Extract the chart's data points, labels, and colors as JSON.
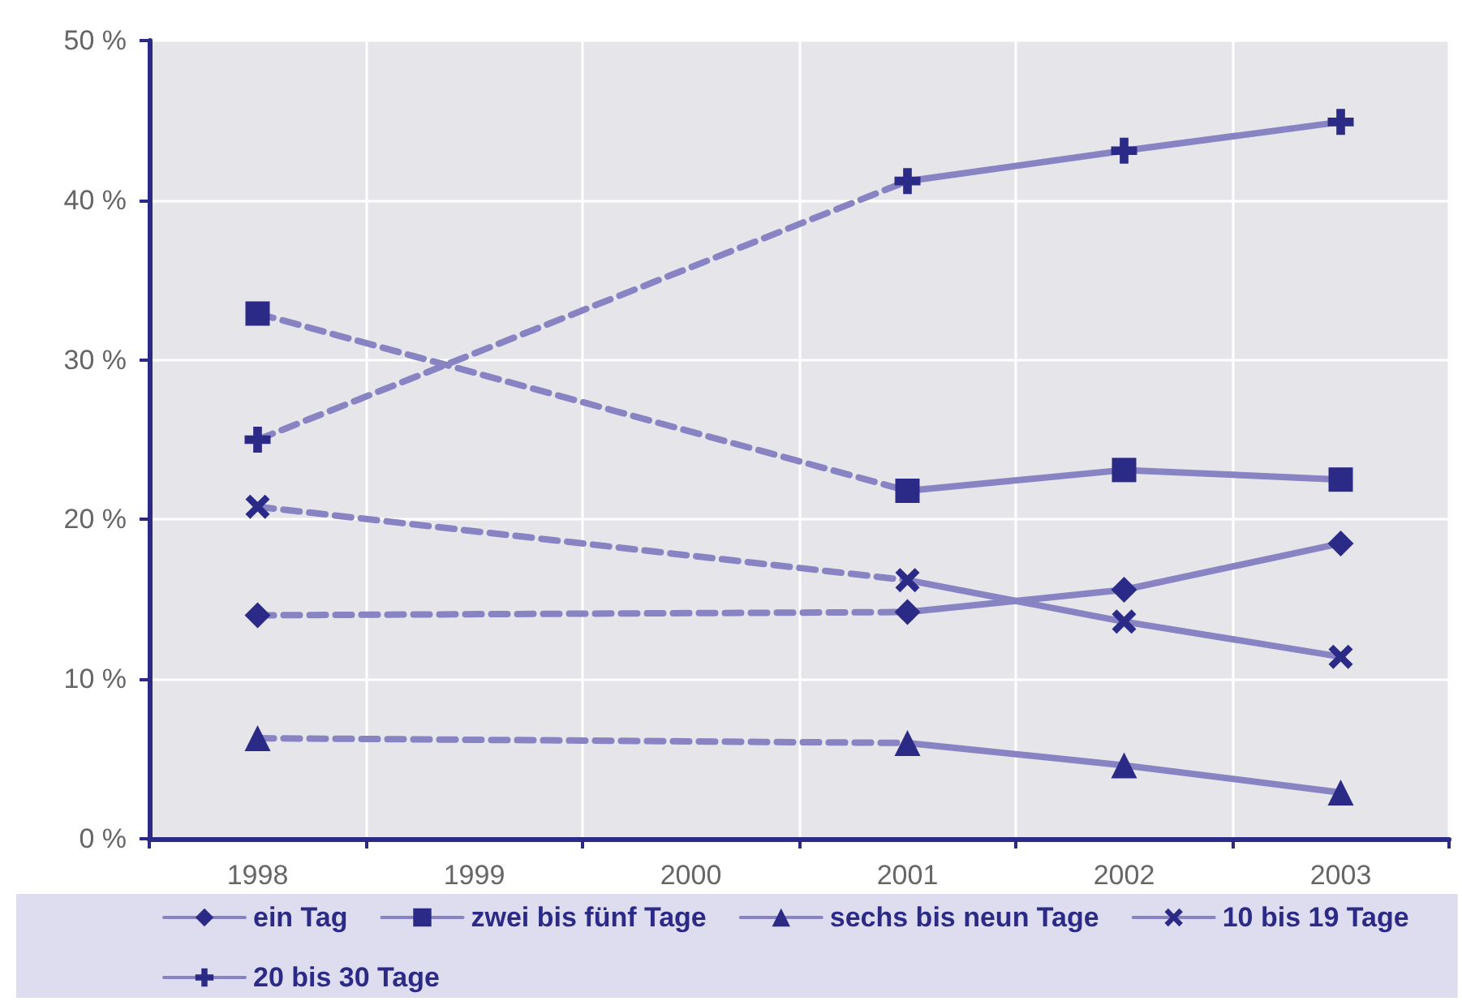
{
  "chart_data": {
    "type": "line",
    "categories": [
      "1998",
      "1999",
      "2000",
      "2001",
      "2002",
      "2003"
    ],
    "ylim": [
      0,
      50
    ],
    "yticks": [
      {
        "value": 0,
        "label": "0 %"
      },
      {
        "value": 10,
        "label": "10 %"
      },
      {
        "value": 20,
        "label": "20 %"
      },
      {
        "value": 30,
        "label": "30 %"
      },
      {
        "value": 40,
        "label": "40 %"
      },
      {
        "value": 50,
        "label": "50 %"
      }
    ],
    "grid": true,
    "legend": "bottom",
    "line_style": "solid",
    "series": [
      {
        "name": "ein Tag",
        "color": "#8884c4",
        "marker": "diamond",
        "values": [
          14.0,
          null,
          null,
          14.2,
          15.6,
          18.5
        ]
      },
      {
        "name": "zwei bis fünf Tage",
        "color": "#8884c4",
        "marker": "square",
        "values": [
          32.9,
          null,
          null,
          21.8,
          23.1,
          22.5
        ]
      },
      {
        "name": "sechs bis neun Tage",
        "color": "#8884c4",
        "marker": "triangle",
        "values": [
          6.3,
          null,
          null,
          6.0,
          4.6,
          2.9
        ]
      },
      {
        "name": "10 bis 19 Tage",
        "color": "#8884c4",
        "marker": "cross",
        "values": [
          20.8,
          null,
          null,
          16.2,
          13.6,
          11.4
        ]
      },
      {
        "name": "20 bis 30 Tage",
        "color": "#8884c4",
        "marker": "plus",
        "values": [
          25.0,
          null,
          null,
          41.2,
          43.1,
          44.9
        ]
      }
    ]
  }
}
